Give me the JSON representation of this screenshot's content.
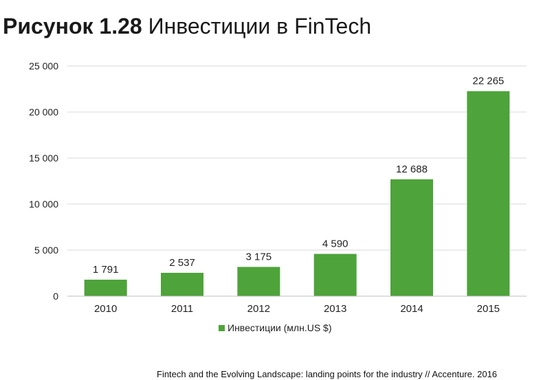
{
  "figure": {
    "title_prefix": "Рисунок 1.28",
    "title_text": "Инвестиции в FinTech"
  },
  "chart_data": {
    "type": "bar",
    "categories": [
      "2010",
      "2011",
      "2012",
      "2013",
      "2014",
      "2015"
    ],
    "series": [
      {
        "name": "Инвестиции (млн.US $)",
        "values": [
          1791,
          2537,
          3175,
          4590,
          12688,
          22265
        ],
        "value_labels": [
          "1 791",
          "2 537",
          "3 175",
          "4 590",
          "12 688",
          "22 265"
        ],
        "color": "#4ea33a"
      }
    ],
    "ylim": [
      0,
      25000
    ],
    "yticks": [
      0,
      5000,
      10000,
      15000,
      20000,
      25000
    ],
    "ytick_labels": [
      "0",
      "5 000",
      "10 000",
      "15 000",
      "20 000",
      "25 000"
    ],
    "grid": true,
    "gridline_color": "#d9d9d9",
    "legend_position": "bottom"
  },
  "source": "Fintech and the Evolving Landscape: landing points for the industry // Accenture. 2016"
}
